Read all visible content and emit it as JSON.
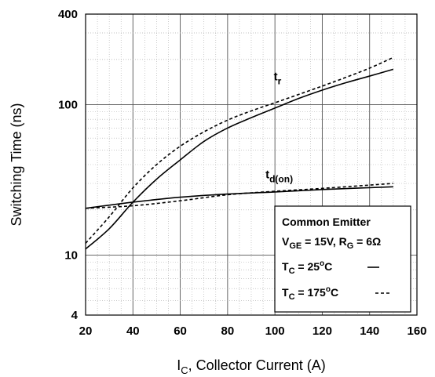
{
  "chart_data": {
    "type": "line",
    "xlabel": {
      "main": "I",
      "sub": "C",
      "rest": ", Collector Current (A)"
    },
    "ylabel": "Switching Time (ns)",
    "xlim": [
      20,
      160
    ],
    "ylim": [
      4,
      400
    ],
    "y_scale": "log",
    "x_ticks": [
      20,
      40,
      60,
      80,
      100,
      120,
      140,
      160
    ],
    "y_ticks": [
      4,
      10,
      100,
      400
    ],
    "y_tick_labels": [
      "4",
      "10",
      "100",
      "400"
    ],
    "grid": true,
    "series": [
      {
        "label_main": "t",
        "label_sub": "r",
        "condition": "TC = 25°C",
        "style": "solid",
        "x": [
          20,
          30,
          40,
          50,
          60,
          70,
          80,
          90,
          100,
          110,
          120,
          130,
          140,
          150
        ],
        "y": [
          11,
          15,
          22.5,
          32,
          43,
          57,
          70,
          82,
          95,
          110,
          125,
          140,
          155,
          172
        ]
      },
      {
        "label_main": "t",
        "label_sub": "r",
        "condition": "TC = 175°C",
        "style": "dashed",
        "x": [
          20,
          30,
          40,
          50,
          60,
          70,
          80,
          90,
          100,
          110,
          120,
          130,
          140,
          150
        ],
        "y": [
          12,
          18,
          28,
          40,
          53,
          66,
          79,
          91,
          103,
          117,
          133,
          152,
          175,
          206
        ]
      },
      {
        "label_main": "t",
        "label_sub": "d(on)",
        "condition": "TC = 25°C",
        "style": "solid",
        "x": [
          20,
          40,
          60,
          80,
          100,
          120,
          150
        ],
        "y": [
          20.5,
          22.5,
          24.3,
          25.5,
          26.3,
          27.3,
          28.5
        ]
      },
      {
        "label_main": "t",
        "label_sub": "d(on)",
        "condition": "TC = 175°C",
        "style": "dashed",
        "x": [
          20,
          40,
          60,
          80,
          100,
          120,
          150
        ],
        "y": [
          20.5,
          21.3,
          23,
          25.2,
          26.6,
          27.8,
          30
        ]
      }
    ],
    "legend": {
      "placement": "bottom-right",
      "line1": "Common Emitter",
      "line2": {
        "v_main": "V",
        "v_sub": "GE",
        "v_mid": " = 15V, R",
        "r_sub": "G",
        "v_end": " = 6Ω"
      },
      "line3": {
        "main": "T",
        "sub": "C",
        "mid": " = 25",
        "sup": "o",
        "end": "C"
      },
      "line4": {
        "main": "T",
        "sub": "C",
        "mid": " = 175",
        "sup": "o",
        "end": "C"
      },
      "solid_style": "solid",
      "dashed_style": "dashed"
    }
  }
}
